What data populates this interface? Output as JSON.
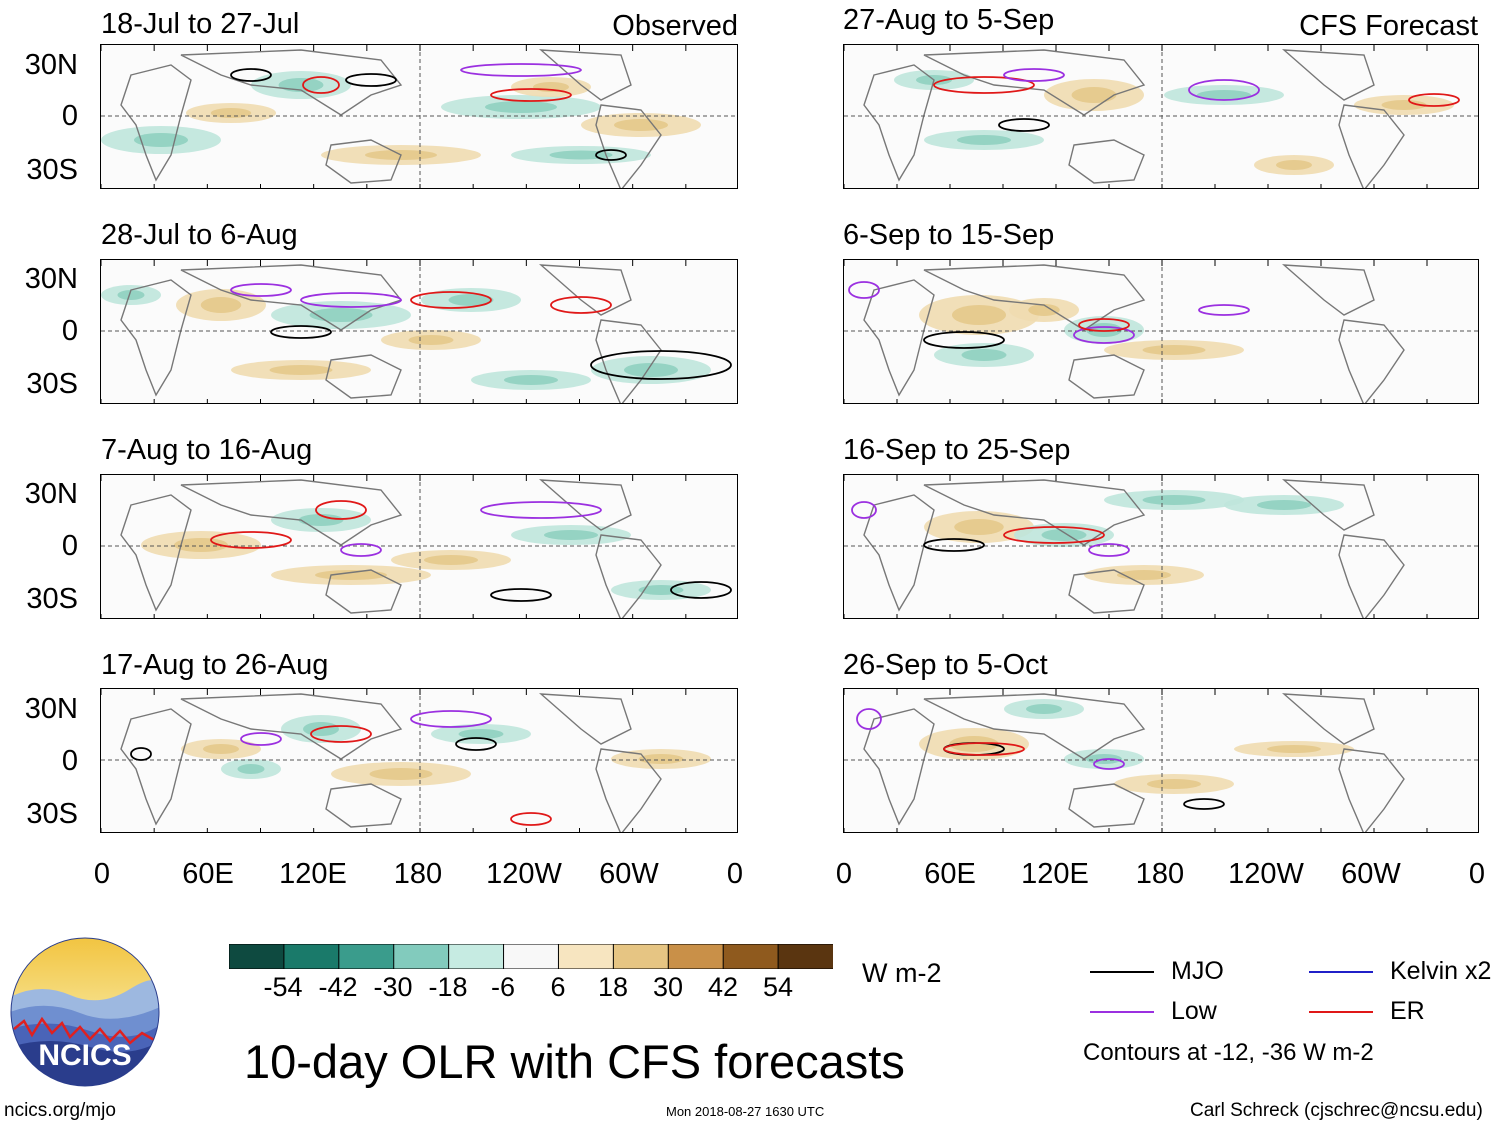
{
  "figure": {
    "title": "10-day OLR with CFS forecasts",
    "units": "W m-2",
    "contour_note": "Contours at -12, -36 W m-2",
    "footer_left": "ncics.org/mjo",
    "footer_center": "Mon 2018-08-27 1630 UTC",
    "footer_right": "Carl Schreck (cjschrec@ncsu.edu)",
    "logo_text": "NCICS"
  },
  "headers": {
    "observed": "Observed",
    "forecast": "CFS Forecast"
  },
  "panels": [
    {
      "title": "18-Jul to 27-Jul"
    },
    {
      "title": "28-Jul to 6-Aug"
    },
    {
      "title": "7-Aug to 16-Aug"
    },
    {
      "title": "17-Aug to 26-Aug"
    },
    {
      "title": "27-Aug to 5-Sep"
    },
    {
      "title": "6-Sep to 15-Sep"
    },
    {
      "title": "16-Sep to 25-Sep"
    },
    {
      "title": "26-Sep to 5-Oct"
    }
  ],
  "axes": {
    "lat_labels": [
      "30N",
      "0",
      "30S"
    ],
    "lon_labels": [
      "0",
      "60E",
      "120E",
      "180",
      "120W",
      "60W",
      "0"
    ]
  },
  "colorbar": {
    "labels": [
      "-54",
      "-42",
      "-30",
      "-18",
      "-6",
      "6",
      "18",
      "30",
      "42",
      "54"
    ],
    "colors": [
      "#0e4a40",
      "#1a7a6a",
      "#3a9c8c",
      "#82cbbd",
      "#c6ebe2",
      "#f8f8f8",
      "#f7e5c0",
      "#e6c583",
      "#c99048",
      "#8f5a1e",
      "#5a3510"
    ]
  },
  "legend": {
    "mjo": {
      "label": "MJO",
      "color": "#000000"
    },
    "kelvin": {
      "label": "Kelvin x2",
      "color": "#2020c8"
    },
    "low": {
      "label": "Low",
      "color": "#9b30e0"
    },
    "er": {
      "label": "ER",
      "color": "#e01818"
    }
  },
  "chart_data": {
    "type": "map",
    "variable": "10-day OLR anomaly",
    "units": "W m-2",
    "lat_range": [
      "40S",
      "40N"
    ],
    "lon_range": [
      "0",
      "360"
    ],
    "contour_levels": [
      -12,
      -36
    ],
    "panel_periods": [
      {
        "period": "18-Jul to 27-Jul",
        "kind": "Observed"
      },
      {
        "period": "28-Jul to 6-Aug",
        "kind": "Observed"
      },
      {
        "period": "7-Aug to 16-Aug",
        "kind": "Observed"
      },
      {
        "period": "17-Aug to 26-Aug",
        "kind": "Observed"
      },
      {
        "period": "27-Aug to 5-Sep",
        "kind": "CFS Forecast"
      },
      {
        "period": "6-Sep to 15-Sep",
        "kind": "CFS Forecast"
      },
      {
        "period": "16-Sep to 25-Sep",
        "kind": "CFS Forecast"
      },
      {
        "period": "26-Sep to 5-Oct",
        "kind": "CFS Forecast"
      }
    ]
  }
}
